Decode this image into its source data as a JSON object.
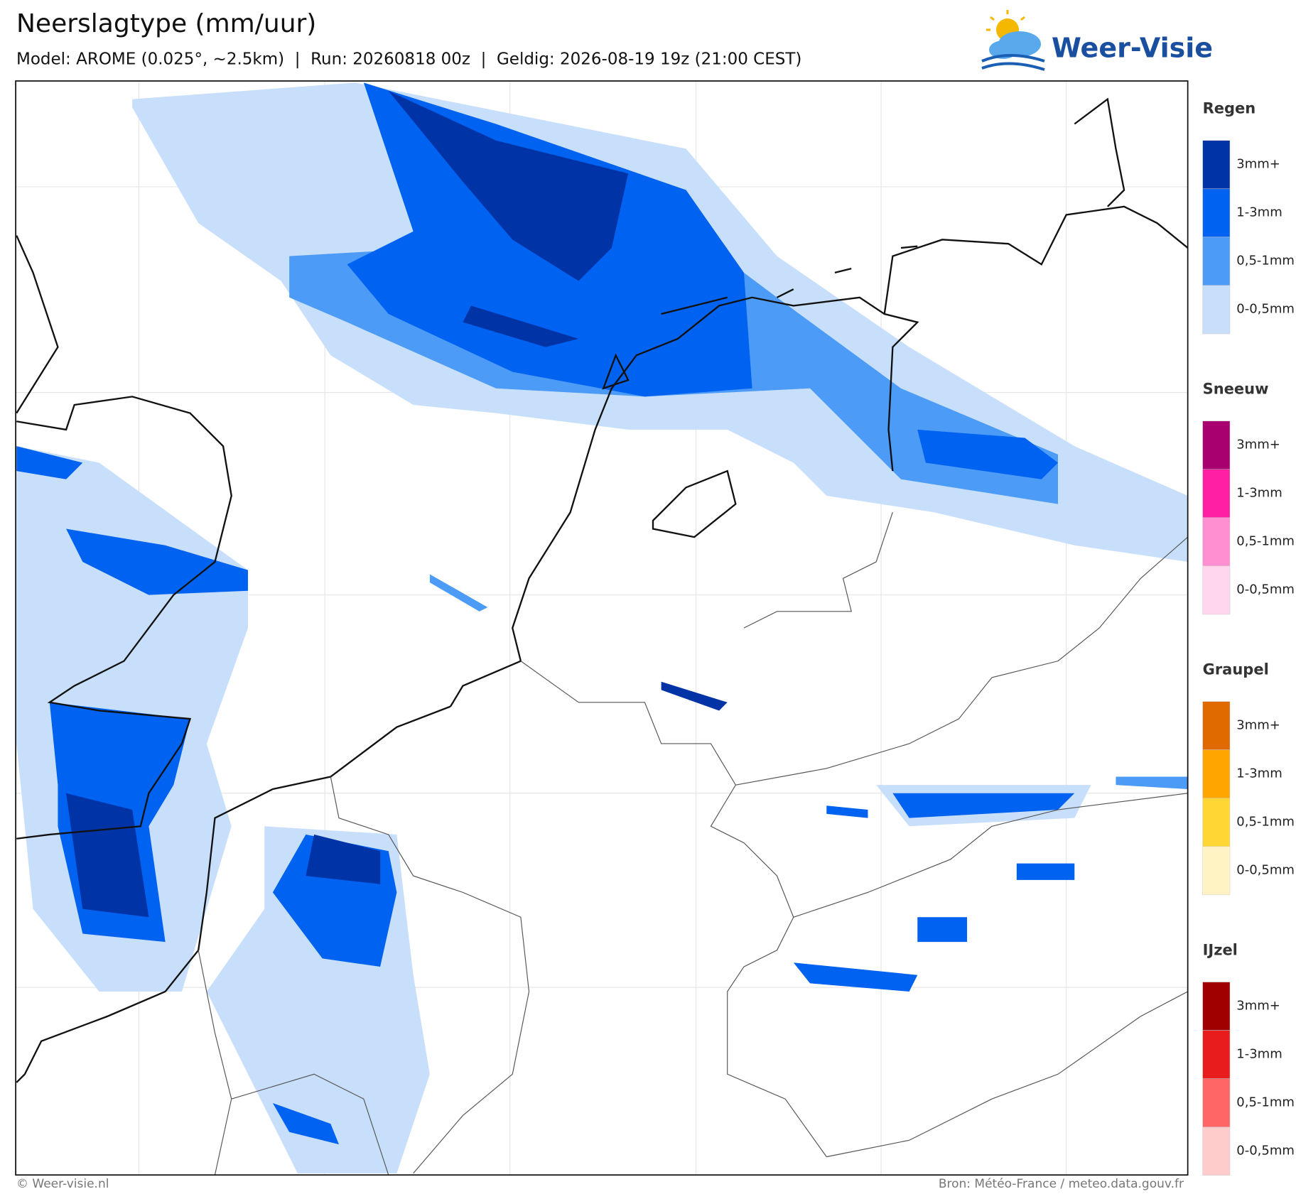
{
  "header": {
    "title": "Neerslagtype (mm/uur)",
    "subtitle": "Model: AROME (0.025°, ~2.5km)  |  Run: 20260818 00z  |  Geldig: 2026-08-19 19z (21:00 CEST)",
    "logo": "Weer-Visie"
  },
  "legend": [
    {
      "title": "Regen",
      "items": [
        {
          "label": "3mm+",
          "color": "#0033a6"
        },
        {
          "label": "1-3mm",
          "color": "#0062f0"
        },
        {
          "label": "0,5-1mm",
          "color": "#4c9bf7"
        },
        {
          "label": "0-0,5mm",
          "color": "#c8dffb"
        }
      ]
    },
    {
      "title": "Sneeuw",
      "items": [
        {
          "label": "3mm+",
          "color": "#a8006e"
        },
        {
          "label": "1-3mm",
          "color": "#ff1fa5"
        },
        {
          "label": "0,5-1mm",
          "color": "#ff8fd0"
        },
        {
          "label": "0-0,5mm",
          "color": "#ffd6ee"
        }
      ]
    },
    {
      "title": "Graupel",
      "items": [
        {
          "label": "3mm+",
          "color": "#e06a00"
        },
        {
          "label": "1-3mm",
          "color": "#ffa500"
        },
        {
          "label": "0,5-1mm",
          "color": "#ffd633"
        },
        {
          "label": "0-0,5mm",
          "color": "#fff3c4"
        }
      ]
    },
    {
      "title": "IJzel",
      "items": [
        {
          "label": "3mm+",
          "color": "#a00000"
        },
        {
          "label": "1-3mm",
          "color": "#e81c1c"
        },
        {
          "label": "0,5-1mm",
          "color": "#ff6666"
        },
        {
          "label": "0-0,5mm",
          "color": "#ffcccc"
        }
      ]
    }
  ],
  "footer": {
    "left": "© Weer-visie.nl",
    "right": "Bron: Météo-France / meteo.data.gouv.fr"
  }
}
